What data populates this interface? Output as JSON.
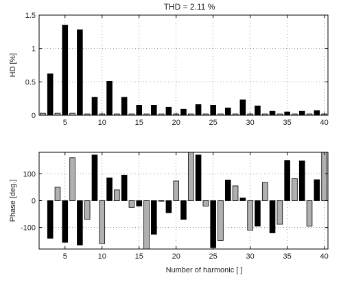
{
  "figure": {
    "title": "THD = 2.11 %",
    "colors": {
      "harmonic": "#000000",
      "interharmonic": "#b0b0b0"
    }
  },
  "chart_data": [
    {
      "type": "bar",
      "ylabel": "HD [%]",
      "xlabel": "",
      "xlim": [
        1.5,
        40.5
      ],
      "ylim": [
        0,
        1.5
      ],
      "xticks": [
        5,
        10,
        15,
        20,
        25,
        30,
        35,
        40
      ],
      "yticks": [
        0,
        0.5,
        1,
        1.5
      ],
      "ytick_labels": [
        "0",
        "0.5",
        "1",
        "1.5"
      ],
      "grid": true,
      "x": [
        2,
        3,
        4,
        5,
        6,
        7,
        8,
        9,
        10,
        11,
        12,
        13,
        14,
        15,
        16,
        17,
        18,
        19,
        20,
        21,
        22,
        23,
        24,
        25,
        26,
        27,
        28,
        29,
        30,
        31,
        32,
        33,
        34,
        35,
        36,
        37,
        38,
        39,
        40
      ],
      "values": [
        0.03,
        0.62,
        0.03,
        1.35,
        0.03,
        1.28,
        0.02,
        0.27,
        0.02,
        0.51,
        0.02,
        0.27,
        0.02,
        0.15,
        0.02,
        0.15,
        0.02,
        0.12,
        0.02,
        0.09,
        0.02,
        0.16,
        0.02,
        0.15,
        0.02,
        0.11,
        0.02,
        0.23,
        0.02,
        0.14,
        0.02,
        0.06,
        0.02,
        0.05,
        0.02,
        0.06,
        0.02,
        0.07,
        0.02
      ]
    },
    {
      "type": "bar",
      "ylabel": "Phase [deg.]",
      "xlabel": "Number of harmonic [ ]",
      "xlim": [
        1.5,
        40.5
      ],
      "ylim": [
        -180,
        180
      ],
      "xticks": [
        5,
        10,
        15,
        20,
        25,
        30,
        35,
        40
      ],
      "yticks": [
        -100,
        0,
        100
      ],
      "ytick_labels": [
        "-100",
        "0",
        "100"
      ],
      "grid": true,
      "x": [
        3,
        4,
        5,
        6,
        7,
        8,
        9,
        10,
        11,
        12,
        13,
        14,
        15,
        16,
        17,
        18,
        19,
        20,
        21,
        22,
        23,
        24,
        25,
        26,
        27,
        28,
        29,
        30,
        31,
        32,
        33,
        34,
        35,
        36,
        37,
        38,
        39,
        40
      ],
      "values": [
        -140,
        50,
        -155,
        160,
        -165,
        -70,
        170,
        -160,
        85,
        40,
        95,
        -25,
        -20,
        -180,
        -125,
        0,
        -45,
        73,
        -70,
        180,
        170,
        -20,
        -175,
        -148,
        77,
        55,
        10,
        -110,
        -95,
        68,
        -120,
        -88,
        150,
        82,
        148,
        -95,
        78,
        180
      ]
    }
  ]
}
